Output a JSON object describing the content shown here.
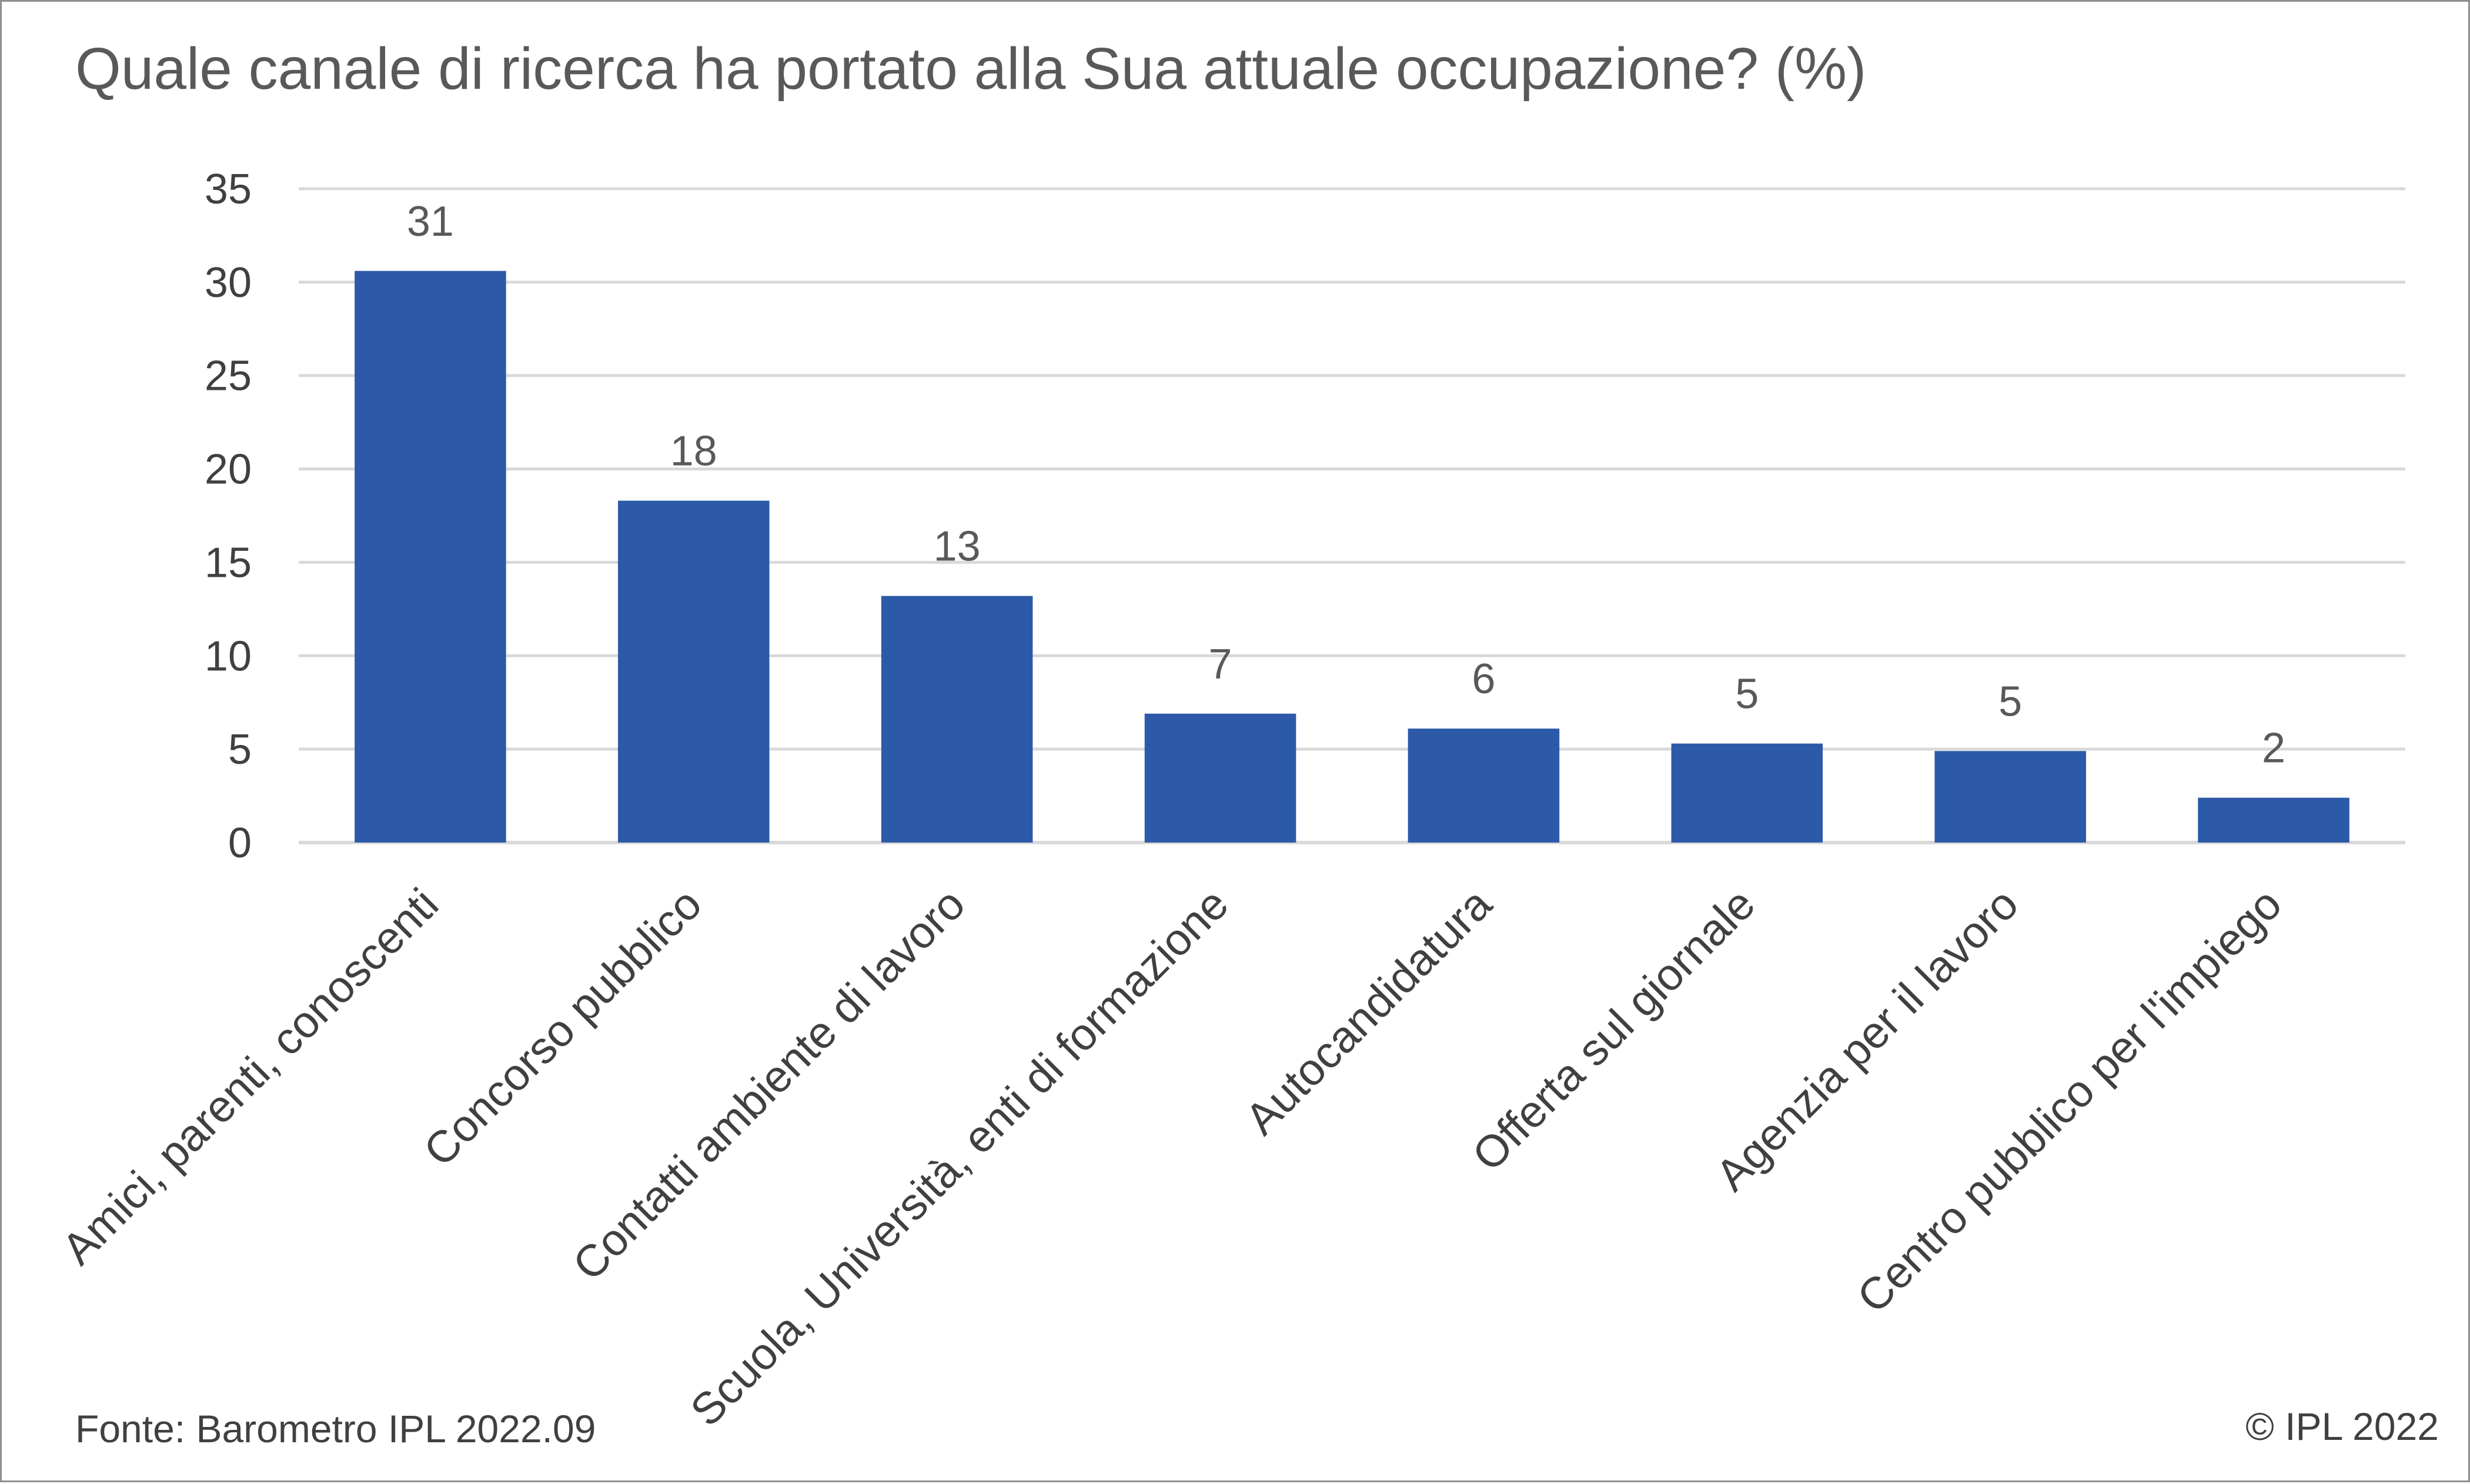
{
  "title": "Quale canale di ricerca ha portato alla Sua attuale occupazione? (%)",
  "source": "Fonte: Barometro IPL 2022.09",
  "copyright": "© IPL 2022",
  "colors": {
    "bar": "#2C5AA8",
    "grid": "#D9D9D9",
    "text": "#404040",
    "title": "#595959",
    "border": "#8F8F8F"
  },
  "chart_data": {
    "type": "bar",
    "title": "Quale canale di ricerca ha portato alla Sua attuale occupazione? (%)",
    "xlabel": "",
    "ylabel": "",
    "ylim": [
      0,
      35
    ],
    "yticks": [
      0,
      5,
      10,
      15,
      20,
      25,
      30,
      35
    ],
    "grid": true,
    "legend": "none",
    "categories": [
      "Amici, parenti, conoscenti",
      "Concorso pubblico",
      "Contatti ambiente di lavoro",
      "Scuola, Università, enti di formazione",
      "Autocandidatura",
      "Offerta sul giornale",
      "Agenzia per il lavoro",
      "Centro pubblico per l'impiego"
    ],
    "values": [
      30.6,
      18.3,
      13.2,
      6.9,
      6.1,
      5.3,
      4.9,
      2.4
    ],
    "data_labels": [
      "31",
      "18",
      "13",
      "7",
      "6",
      "5",
      "5",
      "2"
    ]
  }
}
